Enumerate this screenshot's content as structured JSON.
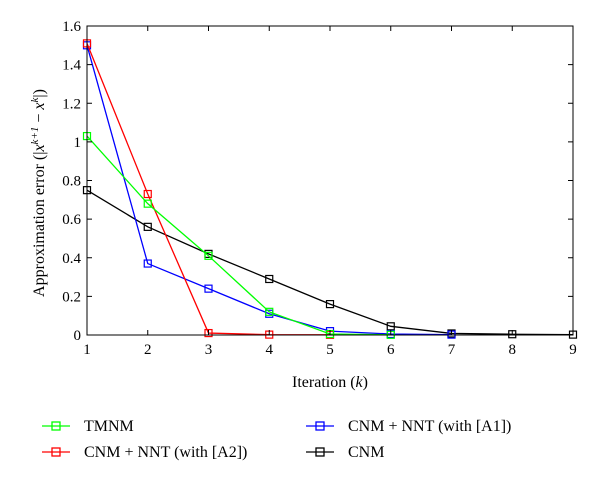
{
  "chart_data": {
    "type": "line",
    "xlabel_text": "Iteration (",
    "xlabel_var": "k",
    "xlabel_close": ")",
    "ylabel": "Approximation error (|x^{k+1} − x^{k}|)",
    "ylabel_prefix": "Approximation error (|",
    "ylabel_x1": "x",
    "ylabel_sup1": "k+1",
    "ylabel_minus": " − ",
    "ylabel_x2": "x",
    "ylabel_sup2": "k",
    "ylabel_suffix": "|)",
    "xlim": [
      1,
      9
    ],
    "ylim": [
      0,
      1.6
    ],
    "xticks": [
      1,
      2,
      3,
      4,
      5,
      6,
      7,
      8,
      9
    ],
    "yticks": [
      0,
      0.2,
      0.4,
      0.6,
      0.8,
      1,
      1.2,
      1.4,
      1.6
    ],
    "ytick_labels": [
      "0",
      "0.2",
      "0.4",
      "0.6",
      "0.8",
      "1",
      "1.2",
      "1.4",
      "1.6"
    ],
    "grid": false,
    "legend_position": "bottom",
    "series": [
      {
        "name": "TMNM",
        "color": "#00ff00",
        "marker": "square",
        "x": [
          1,
          2,
          3,
          4,
          5,
          6
        ],
        "y": [
          1.03,
          0.68,
          0.41,
          0.12,
          0.005,
          0.001
        ]
      },
      {
        "name": "CNM + NNT (with [A2])",
        "color": "#ff0000",
        "marker": "square",
        "x": [
          1,
          2,
          3,
          4,
          5
        ],
        "y": [
          1.51,
          0.73,
          0.01,
          0.002,
          0.001
        ]
      },
      {
        "name": "CNM + NNT (with [A1])",
        "color": "#0000ff",
        "marker": "square",
        "x": [
          1,
          2,
          3,
          4,
          5,
          6,
          7
        ],
        "y": [
          1.5,
          0.37,
          0.24,
          0.11,
          0.02,
          0.005,
          0.002
        ]
      },
      {
        "name": "CNM",
        "color": "#000000",
        "marker": "square",
        "x": [
          1,
          2,
          3,
          4,
          5,
          6,
          7,
          8,
          9
        ],
        "y": [
          0.75,
          0.56,
          0.42,
          0.29,
          0.16,
          0.045,
          0.008,
          0.004,
          0.002
        ]
      }
    ]
  }
}
